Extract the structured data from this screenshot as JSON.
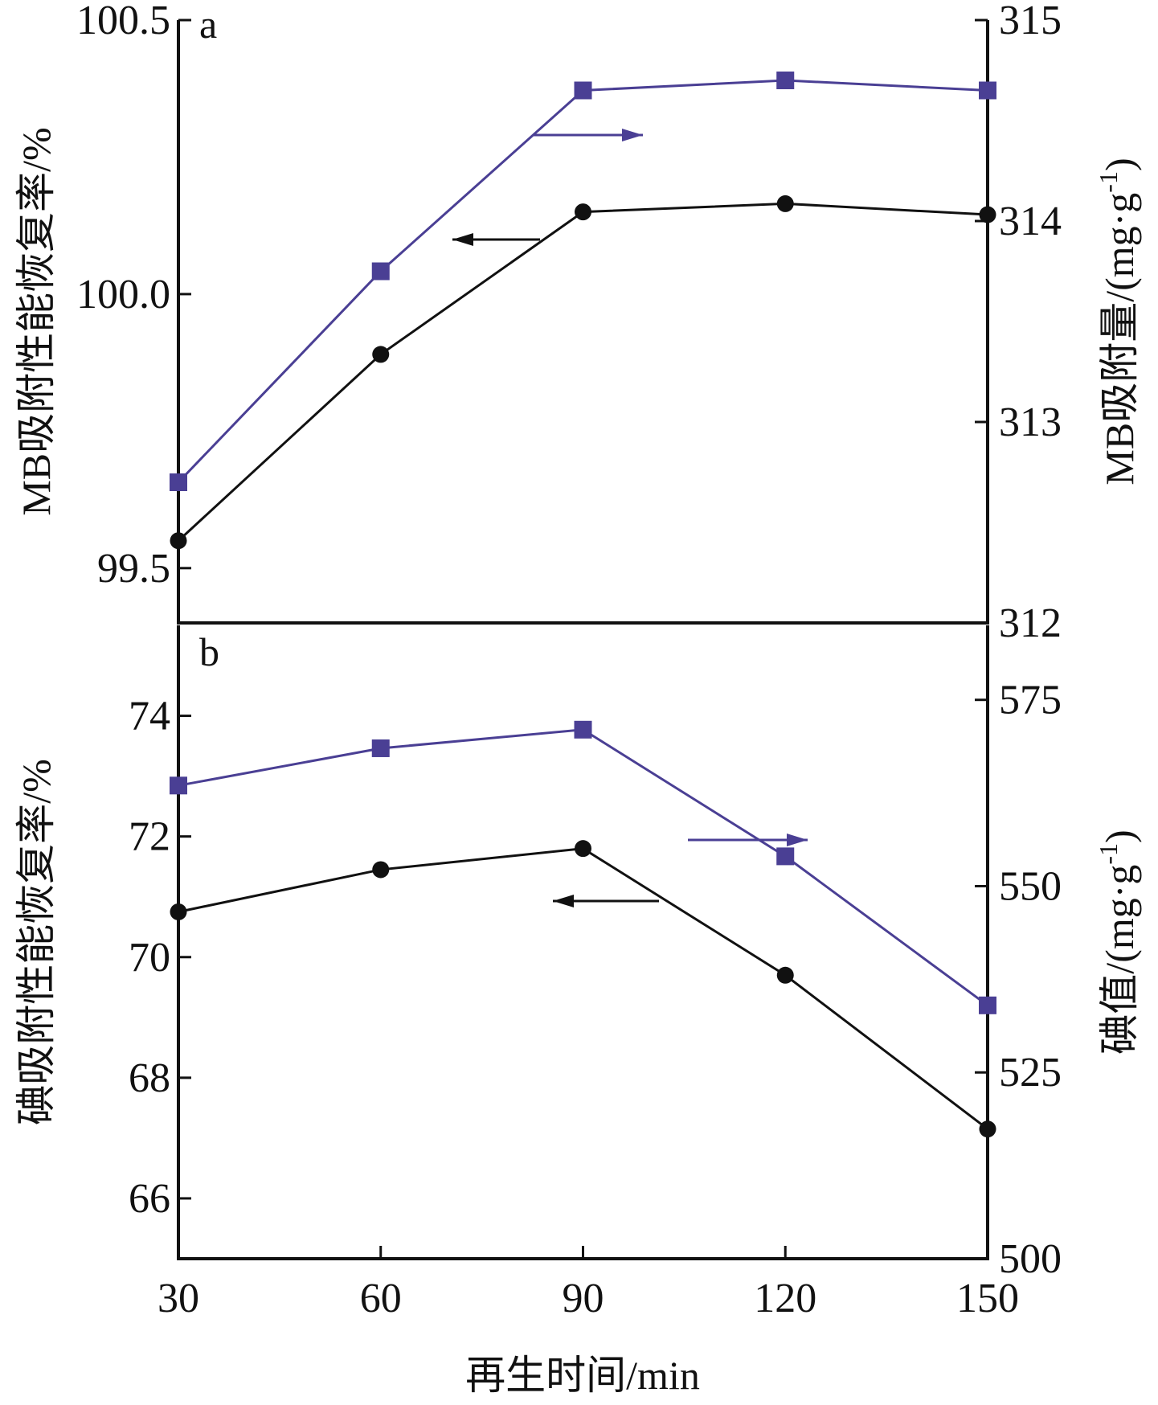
{
  "chart_data": [
    {
      "panel": "a",
      "type": "line",
      "x": [
        30,
        60,
        90,
        120,
        150
      ],
      "xticks": [
        "30",
        "60",
        "90",
        "120",
        "150"
      ],
      "xlim": [
        30,
        150
      ],
      "ylabel_left": "MB吸附性能恢复率/%",
      "ylabel_right": "MB吸附量/(mg·g",
      "ylabel_right_sup": "-1",
      "ylabel_right_close": ")",
      "ylim_left": [
        99.4,
        100.5
      ],
      "yticks_left": [
        {
          "value": 99.5,
          "label": "99.5"
        },
        {
          "value": 100.0,
          "label": "100.0"
        },
        {
          "value": 100.5,
          "label": "100.5"
        }
      ],
      "ylim_right": [
        312,
        315
      ],
      "yticks_right": [
        {
          "value": 312,
          "label": "312"
        },
        {
          "value": 313,
          "label": "313"
        },
        {
          "value": 314,
          "label": "314"
        },
        {
          "value": 315,
          "label": "315"
        }
      ],
      "series": [
        {
          "axis": "left",
          "marker": "circle",
          "color": "#111111",
          "values": [
            99.55,
            99.89,
            100.15,
            100.165,
            100.145
          ]
        },
        {
          "axis": "right",
          "marker": "square",
          "color": "#4a3f94",
          "values": [
            312.7,
            313.75,
            314.65,
            314.7,
            314.65
          ]
        }
      ],
      "annotations": [
        {
          "series": 0,
          "direction": "left"
        },
        {
          "series": 1,
          "direction": "right"
        }
      ]
    },
    {
      "panel": "b",
      "type": "line",
      "x": [
        30,
        60,
        90,
        120,
        150
      ],
      "xticks": [
        "30",
        "60",
        "90",
        "120",
        "150"
      ],
      "xlim": [
        30,
        150
      ],
      "xlabel": "再生时间/min",
      "ylabel_left": "碘吸附性能恢复率/%",
      "ylabel_right": "碘值/(mg·g",
      "ylabel_right_sup": "-1",
      "ylabel_right_close": ")",
      "ylim_left": [
        65,
        75.5
      ],
      "yticks_left": [
        {
          "value": 66,
          "label": "66"
        },
        {
          "value": 68,
          "label": "68"
        },
        {
          "value": 70,
          "label": "70"
        },
        {
          "value": 72,
          "label": "72"
        },
        {
          "value": 74,
          "label": "74"
        }
      ],
      "ylim_right": [
        500,
        585
      ],
      "yticks_right": [
        {
          "value": 500,
          "label": "500"
        },
        {
          "value": 525,
          "label": "525"
        },
        {
          "value": 550,
          "label": "550"
        },
        {
          "value": 575,
          "label": "575"
        }
      ],
      "series": [
        {
          "axis": "left",
          "marker": "circle",
          "color": "#111111",
          "values": [
            70.75,
            71.45,
            71.8,
            69.7,
            67.15
          ]
        },
        {
          "axis": "right",
          "marker": "square",
          "color": "#4a3f94",
          "values": [
            563.5,
            568.5,
            571.0,
            554.0,
            534.0
          ]
        }
      ],
      "annotations": [
        {
          "series": 0,
          "direction": "left"
        },
        {
          "series": 1,
          "direction": "right"
        }
      ]
    }
  ]
}
